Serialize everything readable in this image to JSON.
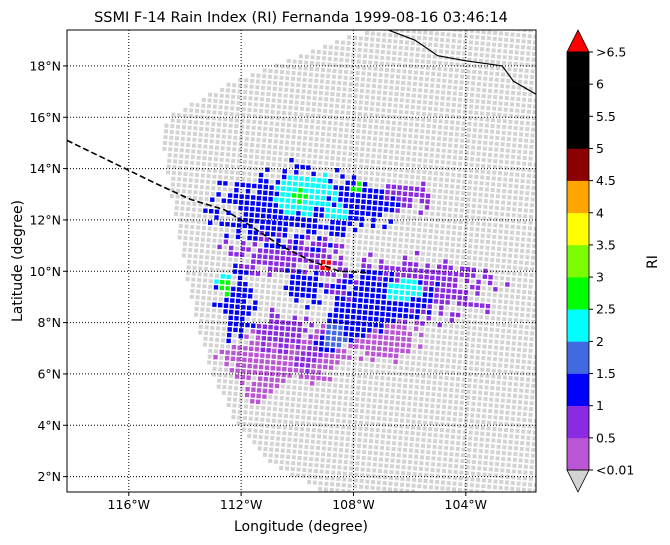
{
  "chart_data": {
    "type": "scatter",
    "title": "SSMI F-14 Rain Index (RI) Fernanda 1999-08-16 03:46:14",
    "xlabel": "Longitude (degree)",
    "ylabel": "Latitude (degree)",
    "xlim": [
      -118.2,
      -101.5
    ],
    "ylim": [
      1.4,
      19.4
    ],
    "x_ticks": [
      {
        "value": -116,
        "label": "116°W"
      },
      {
        "value": -112,
        "label": "112°W"
      },
      {
        "value": -108,
        "label": "108°W"
      },
      {
        "value": -104,
        "label": "104°W"
      }
    ],
    "y_ticks": [
      {
        "value": 2,
        "label": "2°N"
      },
      {
        "value": 4,
        "label": "4°N"
      },
      {
        "value": 6,
        "label": "6°N"
      },
      {
        "value": 8,
        "label": "8°N"
      },
      {
        "value": 10,
        "label": "10°N"
      },
      {
        "value": 12,
        "label": "12°N"
      },
      {
        "value": 14,
        "label": "14°N"
      },
      {
        "value": 16,
        "label": "16°N"
      },
      {
        "value": 18,
        "label": "18°N"
      }
    ],
    "grid": true,
    "swath_color": "#d3d3d3",
    "colorbar": {
      "label": "RI",
      "boundaries": [
        0.01,
        0.5,
        1,
        1.5,
        2,
        2.5,
        3,
        3.5,
        4,
        4.5,
        5,
        5.5,
        6,
        6.5
      ],
      "tick_labels": [
        "<0.01",
        "0.5",
        "1",
        "1.5",
        "2",
        "2.5",
        "3",
        "3.5",
        "4",
        "4.5",
        "5",
        "5.5",
        "6",
        ">6.5"
      ],
      "under_color": "#d3d3d3",
      "over_color": "#ff0000",
      "colors": [
        "#ba55d3",
        "#8a2be2",
        "#0000ff",
        "#4169e1",
        "#00ffff",
        "#00ff00",
        "#7cfc00",
        "#ffff00",
        "#ffa500",
        "#8b0000",
        "#000000",
        "#000000",
        "#000000"
      ]
    },
    "rain_cells": [
      {
        "lon": -109.7,
        "lat": 13.0,
        "rx": 1.0,
        "ry": 0.75,
        "ri": 2.2,
        "jitter": 0.25
      },
      {
        "lon": -110.2,
        "lat": 12.8,
        "rx": 0.5,
        "ry": 0.5,
        "ri": 2.1,
        "jitter": 0.2
      },
      {
        "lon": -108.6,
        "lat": 12.3,
        "rx": 0.45,
        "ry": 0.35,
        "ri": 2.3,
        "jitter": 0.25
      },
      {
        "lon": -110.3,
        "lat": 12.5,
        "rx": 2.2,
        "ry": 1.3,
        "ri": 1.3,
        "jitter": 0.45
      },
      {
        "lon": -107.8,
        "lat": 12.6,
        "rx": 1.2,
        "ry": 0.9,
        "ri": 1.0,
        "jitter": 0.45
      },
      {
        "lon": -109.9,
        "lat": 12.9,
        "rx": 0.25,
        "ry": 0.25,
        "ri": 2.7,
        "jitter": 0.1
      },
      {
        "lon": -107.9,
        "lat": 13.2,
        "rx": 0.25,
        "ry": 0.25,
        "ri": 2.7,
        "jitter": 0.1
      },
      {
        "lon": -106.4,
        "lat": 12.9,
        "rx": 1.0,
        "ry": 0.6,
        "ri": 0.6,
        "jitter": 0.4
      },
      {
        "lon": -110.3,
        "lat": 10.6,
        "rx": 2.1,
        "ry": 0.7,
        "ri": 0.6,
        "jitter": 0.45
      },
      {
        "lon": -109.0,
        "lat": 10.2,
        "rx": 0.25,
        "ry": 0.2,
        "ri": 6.8,
        "jitter": 0.05
      },
      {
        "lon": -109.8,
        "lat": 9.4,
        "rx": 0.6,
        "ry": 0.6,
        "ri": 1.1,
        "jitter": 0.45
      },
      {
        "lon": -106.3,
        "lat": 9.3,
        "rx": 0.6,
        "ry": 0.45,
        "ri": 2.2,
        "jitter": 0.3
      },
      {
        "lon": -107.0,
        "lat": 9.0,
        "rx": 1.6,
        "ry": 0.8,
        "ri": 1.3,
        "jitter": 0.45
      },
      {
        "lon": -106.0,
        "lat": 9.3,
        "rx": 2.6,
        "ry": 1.0,
        "ri": 0.7,
        "jitter": 0.5
      },
      {
        "lon": -107.8,
        "lat": 8.2,
        "rx": 0.9,
        "ry": 0.6,
        "ri": 1.2,
        "jitter": 0.45
      },
      {
        "lon": -108.7,
        "lat": 7.4,
        "rx": 0.5,
        "ry": 0.5,
        "ri": 1.6,
        "jitter": 0.4
      },
      {
        "lon": -112.5,
        "lat": 9.4,
        "rx": 0.25,
        "ry": 0.35,
        "ri": 2.8,
        "jitter": 0.1
      },
      {
        "lon": -112.6,
        "lat": 9.7,
        "rx": 0.3,
        "ry": 0.3,
        "ri": 2.2,
        "jitter": 0.2
      },
      {
        "lon": -112.2,
        "lat": 8.6,
        "rx": 0.6,
        "ry": 1.2,
        "ri": 1.1,
        "jitter": 0.45
      },
      {
        "lon": -111.2,
        "lat": 6.6,
        "rx": 1.3,
        "ry": 0.9,
        "ri": 0.3,
        "jitter": 0.45
      },
      {
        "lon": -109.7,
        "lat": 6.6,
        "rx": 1.3,
        "ry": 0.8,
        "ri": 0.3,
        "jitter": 0.45
      },
      {
        "lon": -110.5,
        "lat": 7.6,
        "rx": 0.9,
        "ry": 0.7,
        "ri": 0.8,
        "jitter": 0.45
      },
      {
        "lon": -107.2,
        "lat": 7.5,
        "rx": 1.4,
        "ry": 0.9,
        "ri": 0.4,
        "jitter": 0.45
      },
      {
        "lon": -104.9,
        "lat": 9.6,
        "rx": 0.6,
        "ry": 0.5,
        "ri": 0.6,
        "jitter": 0.4
      }
    ],
    "rain_bands": [
      {
        "from": [
          -111.8,
          5.0
        ],
        "to": [
          -107.8,
          8.6
        ],
        "half_width": 0.35,
        "ri": 0.3
      },
      {
        "from": [
          -110.0,
          6.3
        ],
        "to": [
          -106.6,
          9.6
        ],
        "half_width": 0.35,
        "ri": 0.7
      },
      {
        "from": [
          -109.3,
          7.0
        ],
        "to": [
          -105.5,
          9.0
        ],
        "half_width": 0.3,
        "ri": 1.1
      }
    ],
    "lines": [
      {
        "name": "coastline",
        "style": "solid",
        "points": [
          [
            -107.0,
            19.5
          ],
          [
            -105.8,
            19.0
          ],
          [
            -105.0,
            18.4
          ],
          [
            -104.0,
            18.2
          ],
          [
            -102.7,
            18.0
          ],
          [
            -102.3,
            17.4
          ],
          [
            -101.5,
            16.9
          ]
        ]
      },
      {
        "name": "boundary",
        "style": "dashed",
        "points": [
          [
            -118.2,
            15.1
          ],
          [
            -116.5,
            14.2
          ],
          [
            -115.0,
            13.4
          ],
          [
            -113.8,
            12.8
          ],
          [
            -112.6,
            12.4
          ],
          [
            -111.7,
            11.8
          ],
          [
            -110.6,
            11.0
          ],
          [
            -109.5,
            10.4
          ],
          [
            -108.5,
            10.0
          ],
          [
            -107.5,
            9.95
          ]
        ]
      }
    ]
  }
}
